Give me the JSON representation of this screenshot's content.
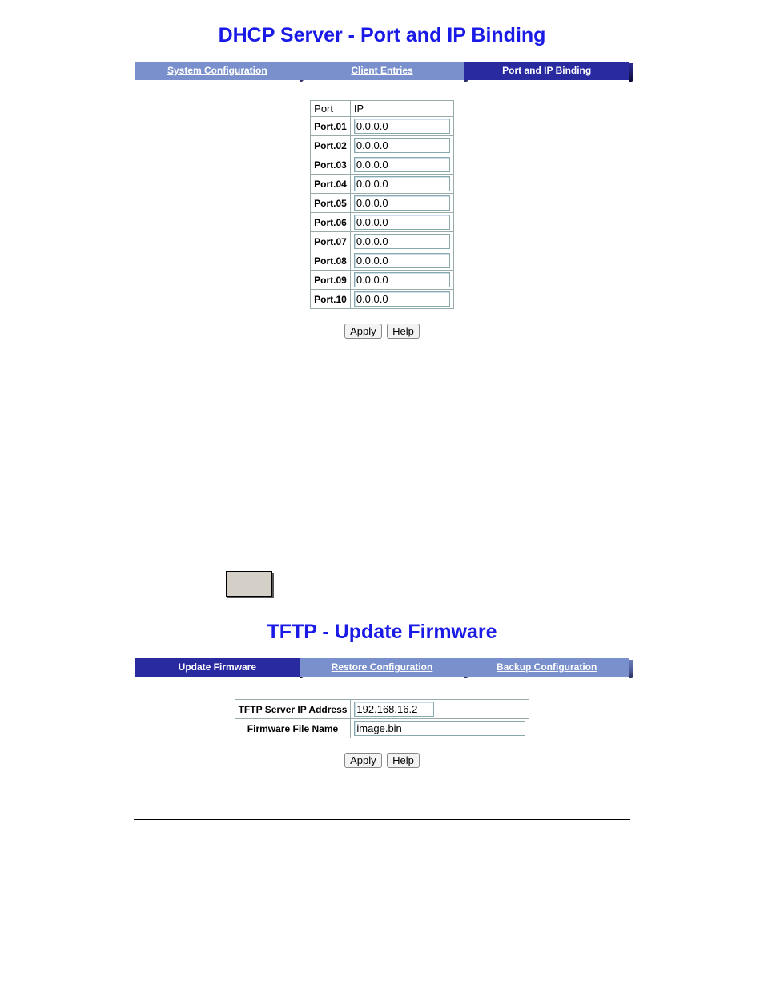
{
  "colors": {
    "title": "#1a1ae6",
    "tab_link_bg": "#7a90cd",
    "tab_active_bg": "#2a2aa0",
    "tab_text": "#ffffff",
    "input_border": "#88aaaa",
    "gray_box": "#d4d0c8"
  },
  "dhcp": {
    "title": "DHCP Server - Port and IP Binding",
    "tabs": {
      "sys": {
        "label": "System Configuration",
        "active": false
      },
      "client": {
        "label": "Client Entries",
        "active": false
      },
      "bind": {
        "label": "Port and IP Binding",
        "active": true
      }
    },
    "table": {
      "headers": {
        "port": "Port",
        "ip": "IP"
      },
      "rows": [
        {
          "port": "Port.01",
          "ip": "0.0.0.0"
        },
        {
          "port": "Port.02",
          "ip": "0.0.0.0"
        },
        {
          "port": "Port.03",
          "ip": "0.0.0.0"
        },
        {
          "port": "Port.04",
          "ip": "0.0.0.0"
        },
        {
          "port": "Port.05",
          "ip": "0.0.0.0"
        },
        {
          "port": "Port.06",
          "ip": "0.0.0.0"
        },
        {
          "port": "Port.07",
          "ip": "0.0.0.0"
        },
        {
          "port": "Port.08",
          "ip": "0.0.0.0"
        },
        {
          "port": "Port.09",
          "ip": "0.0.0.0"
        },
        {
          "port": "Port.10",
          "ip": "0.0.0.0"
        }
      ]
    },
    "buttons": {
      "apply": "Apply",
      "help": "Help"
    }
  },
  "tftp": {
    "title": "TFTP - Update Firmware",
    "tabs": {
      "update": {
        "label": "Update Firmware",
        "active": true
      },
      "restore": {
        "label": "Restore Configuration",
        "active": false
      },
      "backup": {
        "label": "Backup Configuration",
        "active": false
      }
    },
    "form": {
      "server_ip": {
        "label": "TFTP Server IP Address",
        "value": "192.168.16.2"
      },
      "file_name": {
        "label": "Firmware File Name",
        "value": "image.bin"
      }
    },
    "buttons": {
      "apply": "Apply",
      "help": "Help"
    }
  }
}
